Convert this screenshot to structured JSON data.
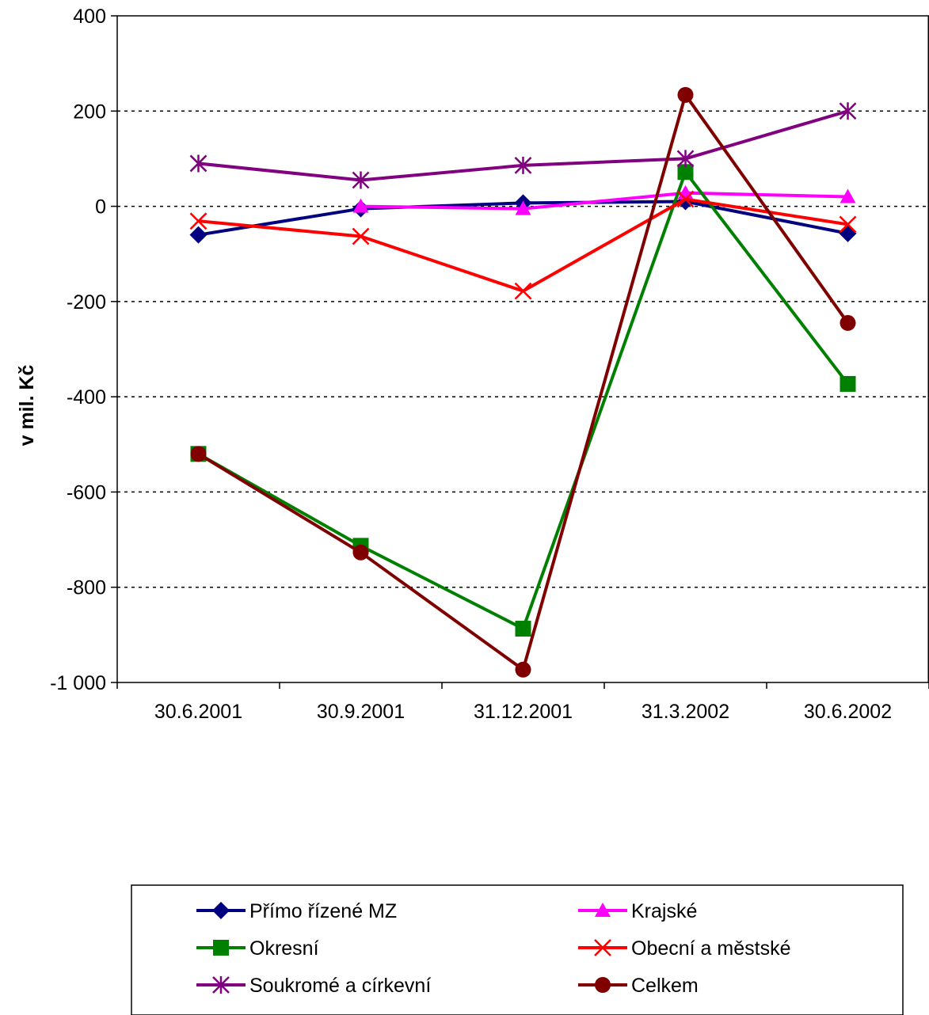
{
  "chart_data": {
    "type": "line",
    "title": "",
    "xlabel": "",
    "ylabel": "v mil. Kč",
    "categories": [
      "30.6.2001",
      "30.9.2001",
      "31.12.2001",
      "31.3.2002",
      "30.6.2002"
    ],
    "ylim": [
      -1000,
      400
    ],
    "yticks": [
      400,
      200,
      0,
      -200,
      -400,
      -600,
      -800,
      -1000
    ],
    "ytick_labels": [
      "400",
      "200",
      "0",
      "-200",
      "-400",
      "-600",
      "-800",
      "-1 000"
    ],
    "grid": "horizontal dotted",
    "legend_position": "bottom",
    "series": [
      {
        "name": "Přímo řízené MZ",
        "values": [
          -60,
          -5,
          7,
          10,
          -57
        ],
        "color": "#000080",
        "marker": "diamond"
      },
      {
        "name": "Krajské",
        "values": [
          null,
          0,
          -5,
          28,
          20
        ],
        "color": "#ff00ff",
        "marker": "triangle"
      },
      {
        "name": "Okresní",
        "values": [
          -520,
          -713,
          -887,
          72,
          -373
        ],
        "color": "#008000",
        "marker": "square"
      },
      {
        "name": "Obecní a městské",
        "values": [
          -31,
          -63,
          -178,
          15,
          -38
        ],
        "color": "#ff0000",
        "marker": "x"
      },
      {
        "name": "Soukromé a církevní",
        "values": [
          90,
          55,
          86,
          100,
          200
        ],
        "color": "#800080",
        "marker": "asterisk"
      },
      {
        "name": "Celkem",
        "values": [
          -520,
          -727,
          -973,
          234,
          -245
        ],
        "color": "#800000",
        "marker": "circle"
      }
    ]
  }
}
